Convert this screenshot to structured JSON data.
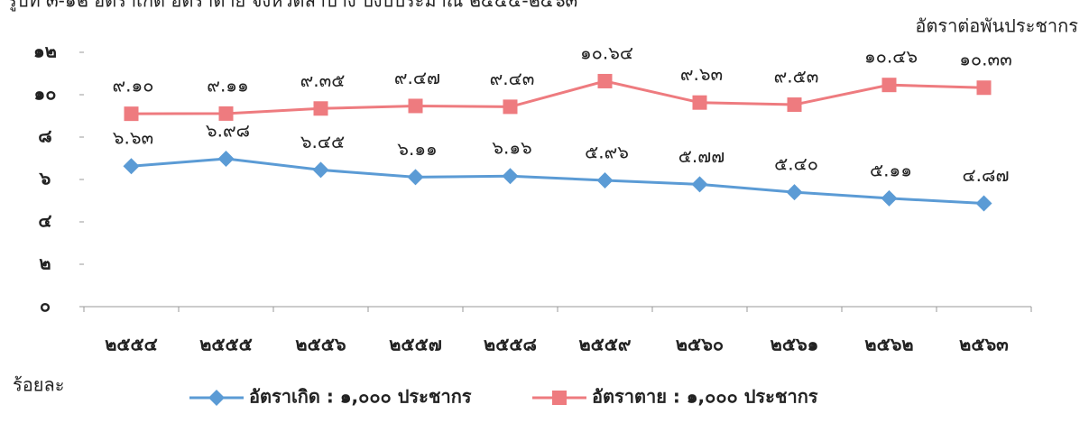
{
  "chart_data": {
    "type": "line",
    "title": "รูปที่ ๓-๑๒ อัตราเกิด อัตราตาย จังหวัดลำปาง ปีงบประมาณ ๒๕๕๔-๒๕๖๓",
    "subtitle": "อัตราต่อพันประชากร",
    "y_label": "ร้อยละ",
    "categories": [
      "๒๕๕๔",
      "๒๕๕๕",
      "๒๕๕๖",
      "๒๕๕๗",
      "๒๕๕๘",
      "๒๕๕๙",
      "๒๕๖๐",
      "๒๕๖๑",
      "๒๕๖๒",
      "๒๕๖๓"
    ],
    "series": [
      {
        "name": "อัตราเกิด : ๑,๐๐๐ ประชากร",
        "color": "#5b9bd5",
        "marker": "diamond",
        "values": [
          6.63,
          6.98,
          6.45,
          6.11,
          6.16,
          5.96,
          5.77,
          5.4,
          5.11,
          4.87
        ],
        "value_labels": [
          "๖.๖๓",
          "๖.๙๘",
          "๖.๔๕",
          "๖.๑๑",
          "๖.๑๖",
          "๕.๙๖",
          "๕.๗๗",
          "๕.๔๐",
          "๕.๑๑",
          "๔.๘๗"
        ]
      },
      {
        "name": "อัตราตาย : ๑,๐๐๐ ประชากร",
        "color": "#ee7b7f",
        "marker": "square",
        "values": [
          9.1,
          9.11,
          9.35,
          9.47,
          9.43,
          10.64,
          9.63,
          9.53,
          10.46,
          10.33
        ],
        "value_labels": [
          "๙.๑๐",
          "๙.๑๑",
          "๙.๓๕",
          "๙.๔๗",
          "๙.๔๓",
          "๑๐.๖๔",
          "๙.๖๓",
          "๙.๕๓",
          "๑๐.๔๖",
          "๑๐.๓๓"
        ]
      }
    ],
    "ylim": [
      0,
      12
    ],
    "yticks": [
      {
        "value": 0,
        "label": "๐"
      },
      {
        "value": 2,
        "label": "๒"
      },
      {
        "value": 4,
        "label": "๔"
      },
      {
        "value": 6,
        "label": "๖"
      },
      {
        "value": 8,
        "label": "๘"
      },
      {
        "value": 10,
        "label": "๑๐"
      },
      {
        "value": 12,
        "label": "๑๒"
      }
    ],
    "grid": false,
    "legend": "bottom"
  }
}
